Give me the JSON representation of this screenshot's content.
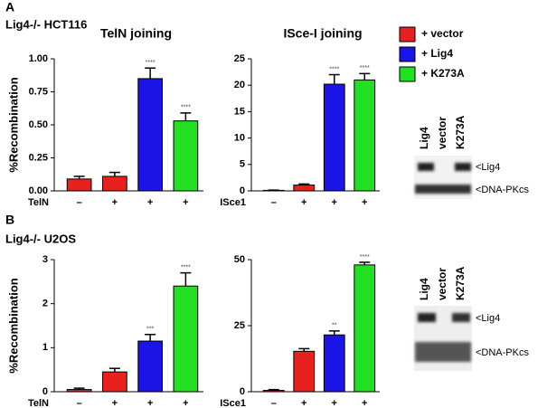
{
  "figure": {
    "panels": [
      {
        "letter": "A",
        "cell_line": "Lig4-/- HCT116"
      },
      {
        "letter": "B",
        "cell_line": "Lig4-/- U2OS"
      }
    ],
    "legend": [
      {
        "name": "+ vector",
        "color": "#e8201e"
      },
      {
        "name": "+ Lig4",
        "color": "#1a14e6"
      },
      {
        "name": "+ K273A",
        "color": "#22e022"
      }
    ],
    "blots": [
      {
        "lanes": [
          "Lig4",
          "vector",
          "K273A"
        ],
        "bands": [
          "<Lig4",
          "<DNA-PKcs"
        ]
      },
      {
        "lanes": [
          "Lig4",
          "vector",
          "K273A"
        ],
        "bands": [
          "<Lig4",
          "<DNA-PKcs"
        ]
      }
    ]
  },
  "chart_data": [
    {
      "type": "bar",
      "title": "TelN joining",
      "ylabel": "%Recombination",
      "treatment": "TelN",
      "categories": [
        "–",
        "+",
        "+",
        "+"
      ],
      "values": [
        0.09,
        0.11,
        0.85,
        0.53
      ],
      "errors": [
        0.02,
        0.03,
        0.08,
        0.06
      ],
      "annotations": [
        null,
        null,
        "****",
        "****"
      ],
      "colors": [
        "#e8201e",
        "#e8201e",
        "#1a14e6",
        "#22e022"
      ],
      "ylim": [
        0,
        1.0
      ],
      "yticks": [
        {
          "value": 0,
          "label": "0.00"
        },
        {
          "value": 0.25,
          "label": "0.25"
        },
        {
          "value": 0.5,
          "label": "0.50"
        },
        {
          "value": 0.75,
          "label": "0.75"
        },
        {
          "value": 1.0,
          "label": "1.00"
        }
      ]
    },
    {
      "type": "bar",
      "title": "ISce-I joining",
      "treatment": "ISce1",
      "categories": [
        "–",
        "+",
        "+",
        "+"
      ],
      "values": [
        0.1,
        1.1,
        20.2,
        21.0
      ],
      "errors": [
        0.05,
        0.2,
        1.8,
        1.2
      ],
      "annotations": [
        null,
        null,
        "****",
        "****"
      ],
      "colors": [
        "#e8201e",
        "#e8201e",
        "#1a14e6",
        "#22e022"
      ],
      "ylim": [
        0,
        25
      ],
      "yticks": [
        0,
        5,
        10,
        15,
        20,
        25
      ]
    },
    {
      "type": "bar",
      "ylabel": "%Recombination",
      "treatment": "TelN",
      "categories": [
        "–",
        "+",
        "+",
        "+"
      ],
      "values": [
        0.05,
        0.45,
        1.15,
        2.4
      ],
      "errors": [
        0.03,
        0.08,
        0.15,
        0.3
      ],
      "annotations": [
        null,
        null,
        "***",
        "****"
      ],
      "colors": [
        "#e8201e",
        "#e8201e",
        "#1a14e6",
        "#22e022"
      ],
      "ylim": [
        0,
        3
      ],
      "yticks": [
        0,
        1,
        2,
        3
      ]
    },
    {
      "type": "bar",
      "treatment": "ISce1",
      "categories": [
        "–",
        "+",
        "+",
        "+"
      ],
      "values": [
        0.5,
        15.3,
        21.5,
        48
      ],
      "errors": [
        0.3,
        1.0,
        1.5,
        1.0
      ],
      "annotations": [
        null,
        null,
        "**",
        "****"
      ],
      "colors": [
        "#e8201e",
        "#e8201e",
        "#1a14e6",
        "#22e022"
      ],
      "ylim": [
        0,
        50
      ],
      "yticks": [
        0,
        25,
        50
      ]
    }
  ]
}
